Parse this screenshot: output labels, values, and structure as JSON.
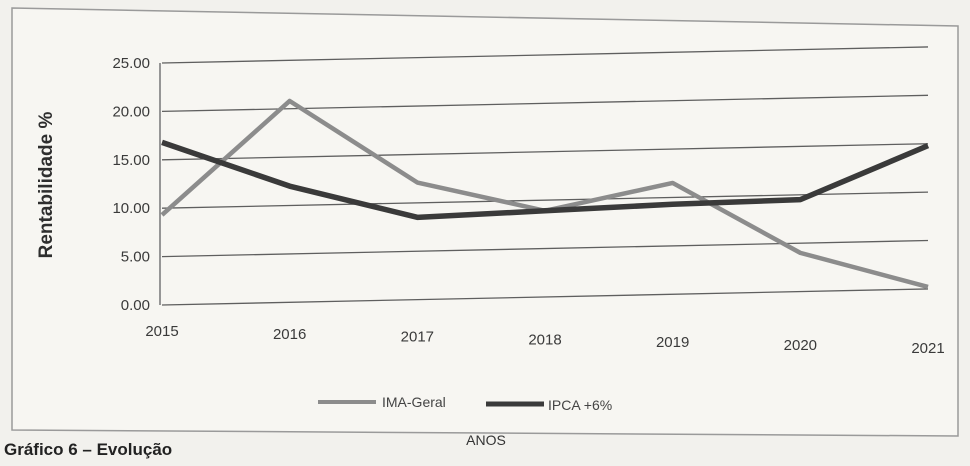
{
  "chart_data": {
    "type": "line",
    "xlabel": "ANOS",
    "ylabel": "Rentabilidade %",
    "categories": [
      "2015",
      "2016",
      "2017",
      "2018",
      "2019",
      "2020",
      "2021"
    ],
    "y_ticks": [
      "25.00",
      "20.00",
      "15.00",
      "10.00",
      "5.00",
      "0.00"
    ],
    "ylim": [
      0,
      25
    ],
    "grid": true,
    "legend_position": "bottom",
    "series": [
      {
        "name": "IMA-Geral",
        "color": "#8c8c8c",
        "values": [
          9.3,
          20.8,
          12.1,
          8.9,
          11.5,
          4.0,
          0.2
        ]
      },
      {
        "name": "IPCA +6%",
        "color": "#3a3a3a",
        "values": [
          16.8,
          12.0,
          8.5,
          8.9,
          9.3,
          9.5,
          14.8
        ]
      }
    ]
  },
  "caption": "Gráfico 6 – Evolução"
}
